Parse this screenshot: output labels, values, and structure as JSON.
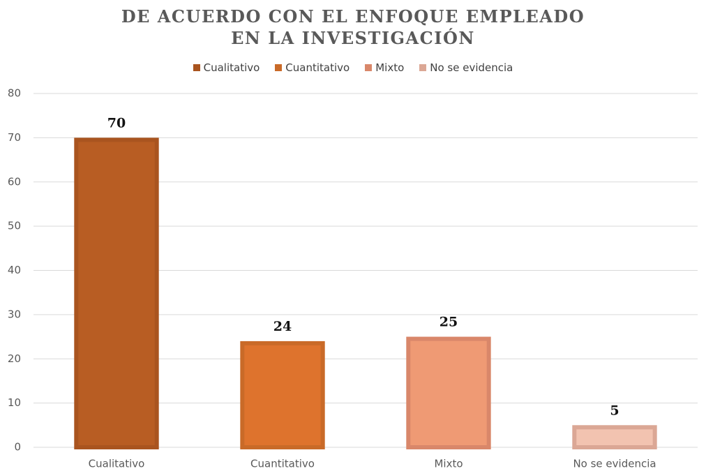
{
  "chart_data": {
    "type": "bar",
    "title": "DE ACUERDO CON EL ENFOQUE EMPLEADO EN LA INVESTIGACIÓN",
    "categories": [
      "Cualitativo",
      "Cuantitativo",
      "Mixto",
      "No se evidencia"
    ],
    "values": [
      70,
      24,
      25,
      5
    ],
    "colors": [
      "#b85d23",
      "#de732d",
      "#ef9a74",
      "#f2c3b0"
    ],
    "edge_colors": [
      "#a9541f",
      "#c96a28",
      "#d9876a",
      "#dba795"
    ],
    "ylim": [
      0,
      80
    ],
    "yticks": [
      0,
      10,
      20,
      30,
      40,
      50,
      60,
      70,
      80
    ],
    "grid": true,
    "legend": "top"
  }
}
